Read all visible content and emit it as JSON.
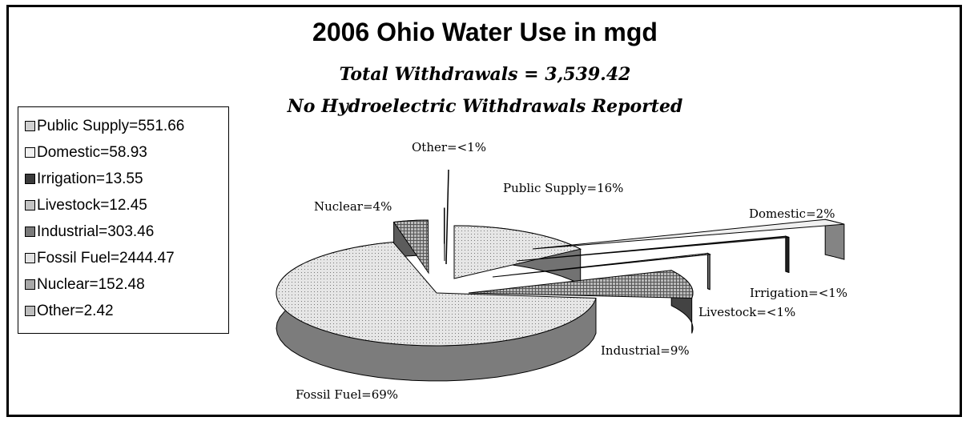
{
  "chart_data": {
    "type": "pie",
    "title": "2006 Ohio Water Use in mgd",
    "subtitles": [
      "Total Withdrawals = 3,539.42",
      "No Hydroelectric Withdrawals Reported"
    ],
    "legend_position": "left",
    "slices": [
      {
        "legend": "Public Supply=551.66",
        "label": "Public Supply=16%",
        "value": 551.66,
        "color": "#d0d0d0"
      },
      {
        "legend": "Domestic=58.93",
        "label": "Domestic=2%",
        "value": 58.93,
        "color": "#f0f0f0"
      },
      {
        "legend": "Irrigation=13.55",
        "label": "Irrigation=<1%",
        "value": 13.55,
        "color": "#3a3a3a"
      },
      {
        "legend": "Livestock=12.45",
        "label": "Livestock=<1%",
        "value": 12.45,
        "color": "#c4c4c4"
      },
      {
        "legend": "Industrial=303.46",
        "label": "Industrial=9%",
        "value": 303.46,
        "color": "#7a7a7a"
      },
      {
        "legend": "Fossil Fuel=2444.47",
        "label": "Fossil Fuel=69%",
        "value": 2444.47,
        "color": "#e2e2e2"
      },
      {
        "legend": "Nuclear=152.48",
        "label": "Nuclear=4%",
        "value": 152.48,
        "color": "#a8a8a8"
      },
      {
        "legend": "Other=2.42",
        "label": "Other=<1%",
        "value": 2.42,
        "color": "#bdbdbd"
      }
    ]
  }
}
